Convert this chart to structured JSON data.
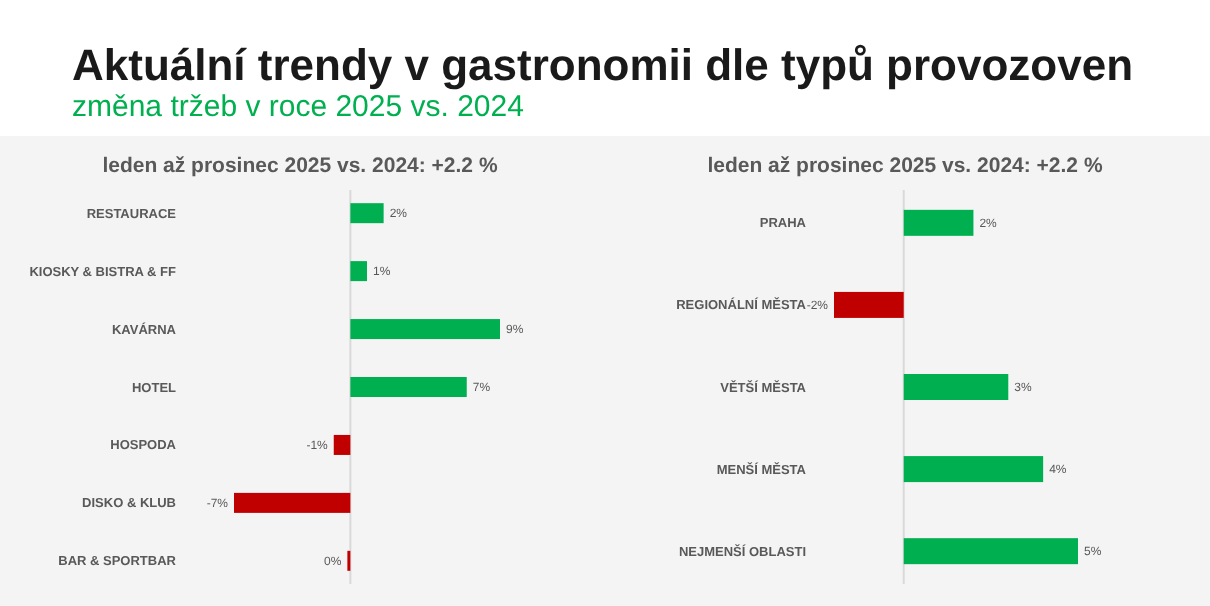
{
  "chart_data": [
    {
      "type": "bar",
      "orientation": "horizontal",
      "title": "leden až prosinec 2025 vs. 2024: +2.2 %",
      "annotations": [
        "Aktuální trendy v gastronomii dle typů provozoven",
        "změna tržeb v roce 2025 vs. 2024"
      ],
      "categories": [
        "RESTAURACE",
        "KIOSKY & BISTRA & FF",
        "KAVÁRNA",
        "HOTEL",
        "HOSPODA",
        "DISKO & KLUB",
        "BAR & SPORTBAR"
      ],
      "values": [
        2,
        1,
        9,
        7,
        -1,
        -7,
        0
      ],
      "value_labels": [
        "2%",
        "1%",
        "9%",
        "7%",
        "-1%",
        "-7%",
        "0%"
      ],
      "colors": [
        "#00b050",
        "#00b050",
        "#00b050",
        "#00b050",
        "#c00000",
        "#c00000",
        "#c00000"
      ]
    },
    {
      "type": "bar",
      "orientation": "horizontal",
      "title": "leden až prosinec 2025 vs. 2024: +2.2 %",
      "categories": [
        "PRAHA",
        "REGIONÁLNÍ MĚSTA",
        "VĚTŠÍ MĚSTA",
        "MENŠÍ MĚSTA",
        "NEJMENŠÍ OBLASTI"
      ],
      "values": [
        2,
        -2,
        3,
        4,
        5
      ],
      "value_labels": [
        "2%",
        "-2%",
        "3%",
        "4%",
        "5%"
      ],
      "colors": [
        "#00b050",
        "#c00000",
        "#00b050",
        "#00b050",
        "#00b050"
      ]
    }
  ]
}
